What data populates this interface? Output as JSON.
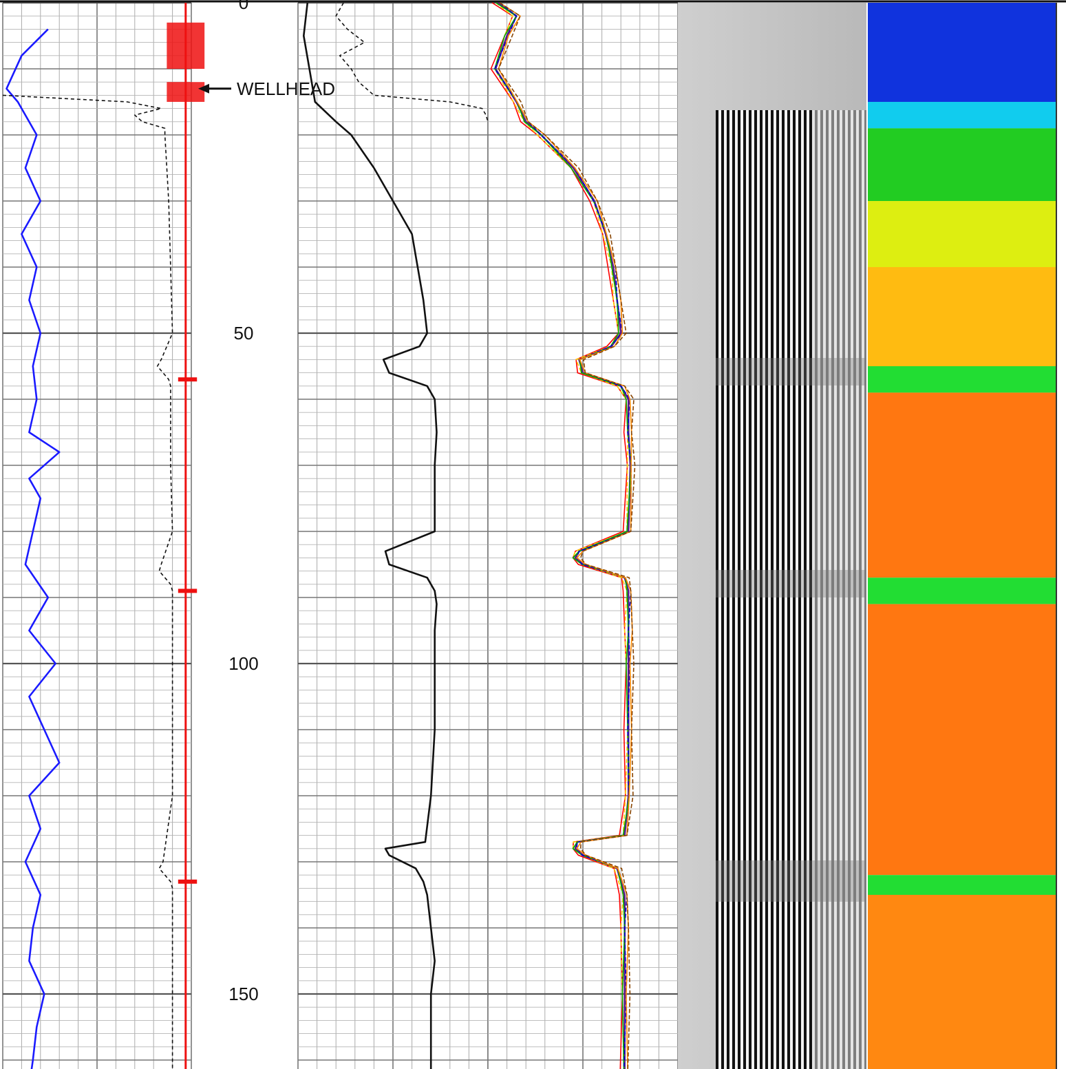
{
  "chart_data": {
    "type": "line",
    "description_type": "well-log",
    "depth_axis": {
      "range": [
        0,
        162
      ],
      "major_tick_interval": 50,
      "minor_tick_interval": 10,
      "fine_tick_interval": 2,
      "tick_labels": [
        "0",
        "50",
        "100",
        "150"
      ],
      "inverted": true
    },
    "annotations": [
      {
        "text": "WELLHEAD",
        "depth": 13,
        "arrow": "left"
      }
    ],
    "tracks": [
      {
        "name": "track-1",
        "curves": [
          {
            "name": "blue-curve",
            "color": "#1a1aff",
            "style": "solid",
            "depth": [
              4,
              8,
              13,
              15,
              20,
              25,
              30,
              35,
              40,
              45,
              50,
              55,
              60,
              65,
              68,
              72,
              75,
              80,
              85,
              90,
              95,
              100,
              105,
              110,
              115,
              120,
              125,
              130,
              135,
              140,
              145,
              150,
              155,
              160,
              162
            ],
            "value": [
              0.24,
              0.1,
              0.02,
              0.08,
              0.18,
              0.12,
              0.2,
              0.1,
              0.18,
              0.14,
              0.2,
              0.16,
              0.18,
              0.14,
              0.3,
              0.14,
              0.2,
              0.16,
              0.12,
              0.24,
              0.14,
              0.28,
              0.14,
              0.22,
              0.3,
              0.14,
              0.2,
              0.12,
              0.2,
              0.16,
              0.14,
              0.22,
              0.18,
              0.16,
              0.15
            ]
          },
          {
            "name": "dashed-curve",
            "color": "#111111",
            "style": "dashed",
            "depth": [
              14,
              15,
              16,
              17,
              18,
              19,
              20,
              25,
              30,
              40,
              50,
              54,
              55,
              56,
              57,
              58,
              60,
              70,
              80,
              85,
              86,
              87,
              88,
              89,
              90,
              100,
              110,
              120,
              130,
              131,
              132,
              133,
              134,
              135,
              140,
              150,
              162
            ],
            "value": [
              0.0,
              0.66,
              0.84,
              0.7,
              0.74,
              0.86,
              0.86,
              0.87,
              0.88,
              0.89,
              0.9,
              0.84,
              0.82,
              0.85,
              0.88,
              0.89,
              0.89,
              0.89,
              0.9,
              0.84,
              0.83,
              0.86,
              0.89,
              0.9,
              0.9,
              0.9,
              0.9,
              0.9,
              0.85,
              0.83,
              0.86,
              0.89,
              0.9,
              0.9,
              0.9,
              0.9,
              0.9
            ]
          },
          {
            "name": "red-curve",
            "color": "#ee1111",
            "style": "solid",
            "depth": [
              0,
              162
            ],
            "value": [
              0.97,
              0.97
            ]
          }
        ]
      },
      {
        "name": "track-2",
        "curves": [
          {
            "name": "black-curve",
            "color": "#111111",
            "style": "solid",
            "depth": [
              0,
              5,
              10,
              15,
              18,
              20,
              25,
              30,
              35,
              40,
              45,
              50,
              52,
              54,
              56,
              58,
              60,
              65,
              70,
              75,
              80,
              83,
              85,
              87,
              89,
              91,
              95,
              100,
              110,
              120,
              127,
              128,
              129,
              131,
              133,
              135,
              140,
              145,
              150,
              155,
              162
            ],
            "value": [
              0.05,
              0.03,
              0.06,
              0.09,
              0.2,
              0.28,
              0.4,
              0.5,
              0.6,
              0.63,
              0.66,
              0.68,
              0.64,
              0.45,
              0.48,
              0.68,
              0.72,
              0.73,
              0.72,
              0.72,
              0.72,
              0.46,
              0.48,
              0.68,
              0.72,
              0.73,
              0.72,
              0.72,
              0.72,
              0.7,
              0.67,
              0.46,
              0.48,
              0.62,
              0.66,
              0.68,
              0.7,
              0.72,
              0.7,
              0.7,
              0.7
            ]
          },
          {
            "name": "dashed-curve-2",
            "color": "#111111",
            "style": "dashed",
            "depth": [
              0,
              2,
              4,
              6,
              8,
              10,
              12,
              14,
              15,
              16,
              17,
              18
            ],
            "value": [
              0.24,
              0.2,
              0.26,
              0.35,
              0.22,
              0.28,
              0.32,
              0.4,
              0.8,
              0.97,
              0.99,
              1.0
            ]
          }
        ]
      },
      {
        "name": "track-3",
        "curves": [
          {
            "name": "multi-curve-purple",
            "color": "#5b1a8a",
            "style": "solid",
            "depth": [
              0,
              2,
              5,
              10,
              15,
              18,
              20,
              25,
              30,
              35,
              40,
              45,
              50,
              52,
              54,
              56,
              58,
              60,
              65,
              70,
              80,
              83,
              84,
              85,
              87,
              89,
              95,
              100,
              110,
              120,
              126,
              127,
              128,
              129,
              131,
              135,
              140,
              150,
              162
            ],
            "value": [
              0.05,
              0.15,
              0.1,
              0.04,
              0.15,
              0.2,
              0.28,
              0.45,
              0.56,
              0.62,
              0.66,
              0.68,
              0.7,
              0.65,
              0.48,
              0.5,
              0.7,
              0.74,
              0.74,
              0.75,
              0.74,
              0.48,
              0.46,
              0.5,
              0.72,
              0.74,
              0.74,
              0.74,
              0.74,
              0.74,
              0.72,
              0.47,
              0.46,
              0.5,
              0.68,
              0.72,
              0.72,
              0.72,
              0.72
            ]
          }
        ],
        "extra_series_colors": [
          "#ff0000",
          "#ffcc00",
          "#00aa00",
          "#0000cc",
          "#ff8800",
          "#884400"
        ]
      },
      {
        "name": "track-4",
        "type": "image",
        "label": "waveform-variable-density"
      },
      {
        "name": "track-5",
        "type": "heatmap",
        "bands": [
          {
            "from": 0,
            "to": 15,
            "color": "#1033dd"
          },
          {
            "from": 15,
            "to": 19,
            "color": "#11ccee"
          },
          {
            "from": 19,
            "to": 30,
            "color": "#22cc22"
          },
          {
            "from": 30,
            "to": 40,
            "color": "#ddee11"
          },
          {
            "from": 40,
            "to": 55,
            "color": "#ffbb11"
          },
          {
            "from": 55,
            "to": 59,
            "color": "#22dd33"
          },
          {
            "from": 59,
            "to": 87,
            "color": "#ff7711"
          },
          {
            "from": 87,
            "to": 91,
            "color": "#22dd33"
          },
          {
            "from": 91,
            "to": 132,
            "color": "#ff7711"
          },
          {
            "from": 132,
            "to": 135,
            "color": "#22dd33"
          },
          {
            "from": 135,
            "to": 162,
            "color": "#ff8811"
          }
        ]
      }
    ]
  }
}
